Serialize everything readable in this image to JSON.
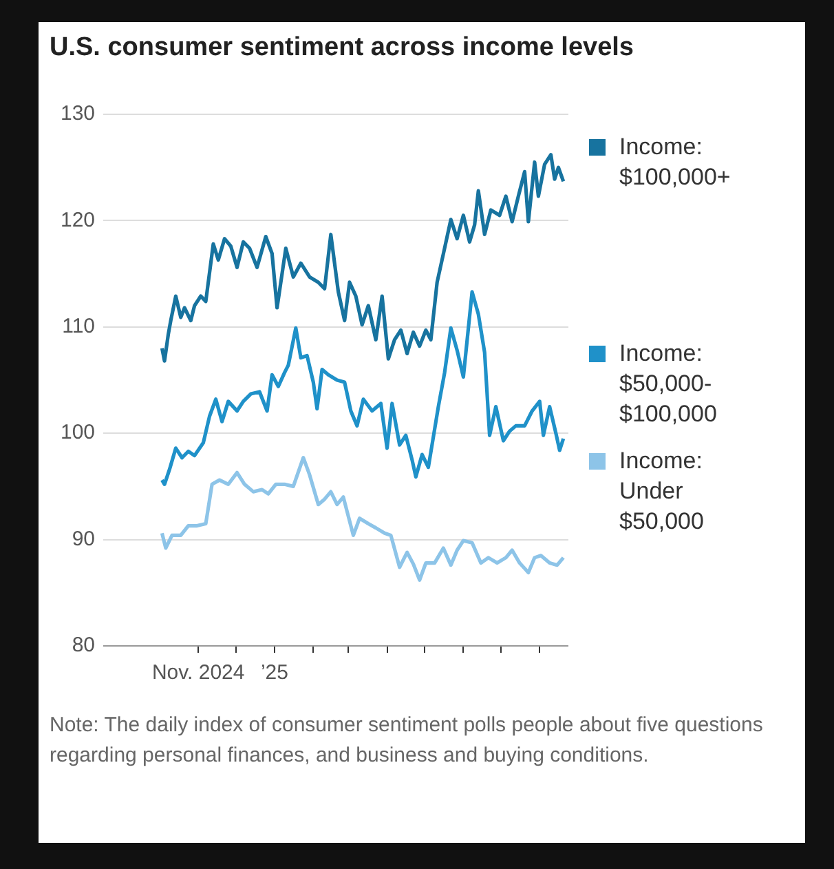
{
  "chart_data": {
    "type": "line",
    "title": "U.S. consumer sentiment across income levels",
    "xlim": [
      "2024-08-17",
      "2025-08-24"
    ],
    "xticks": [
      {
        "value": "2024-11-01",
        "label": "Nov. 2024"
      },
      {
        "value": "2024-12-01",
        "label": null
      },
      {
        "value": "2025-01-01",
        "label": "’25"
      },
      {
        "value": "2025-02-01",
        "label": null
      },
      {
        "value": "2025-03-01",
        "label": null
      },
      {
        "value": "2025-04-01",
        "label": null
      },
      {
        "value": "2025-05-01",
        "label": null
      },
      {
        "value": "2025-06-01",
        "label": null
      },
      {
        "value": "2025-07-01",
        "label": null
      },
      {
        "value": "2025-08-01",
        "label": null
      }
    ],
    "ylim": [
      80,
      130
    ],
    "yticks": [
      80,
      90,
      100,
      110,
      120,
      130
    ],
    "grid": "y",
    "legend": "right",
    "series": [
      {
        "name": "Income: $100,000+",
        "color": "#17739f",
        "x": [
          "2024-10-03",
          "2024-10-05",
          "2024-10-08",
          "2024-10-10",
          "2024-10-14",
          "2024-10-18",
          "2024-10-21",
          "2024-10-26",
          "2024-10-29",
          "2024-11-03",
          "2024-11-07",
          "2024-11-13",
          "2024-11-17",
          "2024-11-22",
          "2024-11-27",
          "2024-12-02",
          "2024-12-07",
          "2024-12-12",
          "2024-12-18",
          "2024-12-25",
          "2024-12-30",
          "2025-01-03",
          "2025-01-10",
          "2025-01-16",
          "2025-01-22",
          "2025-01-29",
          "2025-02-05",
          "2025-02-10",
          "2025-02-15",
          "2025-02-21",
          "2025-02-26",
          "2025-03-02",
          "2025-03-07",
          "2025-03-12",
          "2025-03-17",
          "2025-03-23",
          "2025-03-28",
          "2025-04-02",
          "2025-04-07",
          "2025-04-12",
          "2025-04-17",
          "2025-04-22",
          "2025-04-27",
          "2025-05-02",
          "2025-05-06",
          "2025-05-11",
          "2025-05-17",
          "2025-05-22",
          "2025-05-27",
          "2025-06-01",
          "2025-06-06",
          "2025-06-10",
          "2025-06-13",
          "2025-06-18",
          "2025-06-23",
          "2025-06-30",
          "2025-07-05",
          "2025-07-10",
          "2025-07-15",
          "2025-07-20",
          "2025-07-23",
          "2025-07-28",
          "2025-07-31",
          "2025-08-05",
          "2025-08-10",
          "2025-08-13",
          "2025-08-16",
          "2025-08-20"
        ],
        "values": [
          108,
          106.8,
          109.3,
          110.6,
          112.9,
          110.9,
          111.8,
          110.6,
          112,
          112.9,
          112.4,
          117.8,
          116.3,
          118.3,
          117.6,
          115.6,
          118,
          117.4,
          115.6,
          118.5,
          116.9,
          111.8,
          117.4,
          114.7,
          116,
          114.7,
          114.2,
          113.6,
          118.7,
          113.3,
          110.6,
          114.2,
          112.9,
          110.2,
          112,
          108.8,
          112.9,
          107,
          108.8,
          109.7,
          107.5,
          109.5,
          108.2,
          109.7,
          108.8,
          114.2,
          117.4,
          120.1,
          118.3,
          120.5,
          118,
          119.6,
          122.8,
          118.7,
          121,
          120.5,
          122.3,
          119.9,
          122.3,
          124.6,
          119.9,
          125.5,
          122.3,
          125.3,
          126.2,
          123.9,
          125,
          123.7
        ]
      },
      {
        "name": "Income: $50,000-$100,000",
        "color": "#1f91c9",
        "x": [
          "2024-10-03",
          "2024-10-05",
          "2024-10-09",
          "2024-10-14",
          "2024-10-19",
          "2024-10-24",
          "2024-10-29",
          "2024-11-05",
          "2024-11-10",
          "2024-11-15",
          "2024-11-20",
          "2024-11-25",
          "2024-12-02",
          "2024-12-07",
          "2024-12-13",
          "2024-12-20",
          "2024-12-26",
          "2024-12-30",
          "2025-01-04",
          "2025-01-09",
          "2025-01-12",
          "2025-01-18",
          "2025-01-22",
          "2025-01-27",
          "2025-02-01",
          "2025-02-04",
          "2025-02-08",
          "2025-02-13",
          "2025-02-20",
          "2025-02-26",
          "2025-03-03",
          "2025-03-08",
          "2025-03-13",
          "2025-03-20",
          "2025-03-27",
          "2025-04-01",
          "2025-04-05",
          "2025-04-11",
          "2025-04-16",
          "2025-04-21",
          "2025-04-24",
          "2025-04-29",
          "2025-05-04",
          "2025-05-12",
          "2025-05-17",
          "2025-05-22",
          "2025-05-27",
          "2025-06-01",
          "2025-06-08",
          "2025-06-13",
          "2025-06-18",
          "2025-06-22",
          "2025-06-27",
          "2025-07-03",
          "2025-07-08",
          "2025-07-13",
          "2025-07-20",
          "2025-07-26",
          "2025-08-01",
          "2025-08-04",
          "2025-08-09",
          "2025-08-14",
          "2025-08-17",
          "2025-08-20"
        ],
        "values": [
          95.6,
          95.2,
          96.6,
          98.6,
          97.7,
          98.3,
          97.9,
          99.1,
          101.6,
          103.2,
          101.1,
          103,
          102.1,
          103,
          103.7,
          103.9,
          102.1,
          105.5,
          104.4,
          105.7,
          106.4,
          109.9,
          107.1,
          107.3,
          104.8,
          102.3,
          106,
          105.5,
          105,
          104.8,
          102.1,
          100.7,
          103.2,
          102.1,
          102.8,
          98.6,
          102.8,
          98.9,
          99.8,
          97.5,
          95.9,
          98,
          96.8,
          102.5,
          105.7,
          109.9,
          107.8,
          105.3,
          113.3,
          111.2,
          107.6,
          99.8,
          102.5,
          99.3,
          100.2,
          100.7,
          100.7,
          102.1,
          103,
          99.8,
          102.5,
          100,
          98.4,
          99.5
        ]
      },
      {
        "name": "Income: Under $50,000",
        "color": "#8dc4e8",
        "x": [
          "2024-10-03",
          "2024-10-06",
          "2024-10-11",
          "2024-10-18",
          "2024-10-24",
          "2024-10-31",
          "2024-11-07",
          "2024-11-12",
          "2024-11-18",
          "2024-11-25",
          "2024-12-02",
          "2024-12-08",
          "2024-12-15",
          "2024-12-22",
          "2024-12-27",
          "2025-01-02",
          "2025-01-09",
          "2025-01-16",
          "2025-01-24",
          "2025-01-29",
          "2025-02-05",
          "2025-02-10",
          "2025-02-15",
          "2025-02-20",
          "2025-02-25",
          "2025-03-05",
          "2025-03-10",
          "2025-03-17",
          "2025-03-23",
          "2025-03-30",
          "2025-04-04",
          "2025-04-11",
          "2025-04-17",
          "2025-04-22",
          "2025-04-27",
          "2025-05-02",
          "2025-05-09",
          "2025-05-16",
          "2025-05-22",
          "2025-05-27",
          "2025-06-01",
          "2025-06-08",
          "2025-06-15",
          "2025-06-21",
          "2025-06-28",
          "2025-07-05",
          "2025-07-10",
          "2025-07-16",
          "2025-07-23",
          "2025-07-28",
          "2025-08-02",
          "2025-08-09",
          "2025-08-15",
          "2025-08-20"
        ],
        "values": [
          90.6,
          89.2,
          90.4,
          90.4,
          91.3,
          91.3,
          91.5,
          95.2,
          95.6,
          95.2,
          96.3,
          95.2,
          94.5,
          94.7,
          94.3,
          95.2,
          95.2,
          95,
          97.7,
          96.1,
          93.3,
          93.8,
          94.5,
          93.3,
          94,
          90.4,
          92,
          91.5,
          91.1,
          90.6,
          90.4,
          87.4,
          88.8,
          87.7,
          86.2,
          87.8,
          87.8,
          89.2,
          87.6,
          89,
          89.9,
          89.7,
          87.8,
          88.3,
          87.8,
          88.3,
          89,
          87.8,
          86.9,
          88.3,
          88.5,
          87.8,
          87.6,
          88.3
        ]
      }
    ],
    "annotations": [
      "Note: The daily index of consumer sentiment polls people about five questions regarding personal finances, and business and buying conditions."
    ]
  }
}
